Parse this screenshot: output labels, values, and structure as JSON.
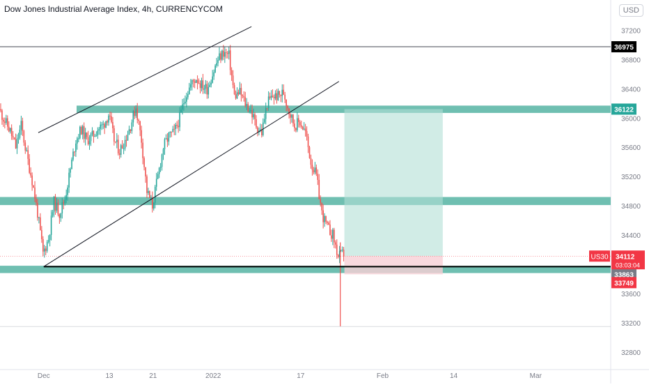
{
  "header": {
    "title": "Dow Jones Industrial Average Index, 4h, CURRENCYCOM",
    "currency": "USD"
  },
  "colors": {
    "up": "#26a69a",
    "down": "#ef5350",
    "zone": "#5fb8a8",
    "target_zone": "#b2dfd6",
    "stop_zone": "#f8d0d6",
    "price_tag": "#f23645",
    "level_dark": "#000000",
    "level_green": "#26a69a",
    "grey_tag": "#787b86"
  },
  "chart_data": {
    "type": "candlestick",
    "symbol": "US30",
    "ylim": [
      32560,
      37500
    ],
    "y_ticks": [
      32800,
      33200,
      33600,
      34000,
      34400,
      34800,
      35200,
      35600,
      36000,
      36400,
      36800,
      37200
    ],
    "x_tick_labels": [
      {
        "label": "Dec",
        "date": "2021-12-01"
      },
      {
        "label": "13",
        "date": "2021-12-13"
      },
      {
        "label": "21",
        "date": "2021-12-21"
      },
      {
        "label": "2022",
        "date": "2022-01-01"
      },
      {
        "label": "17",
        "date": "2022-01-17"
      },
      {
        "label": "Feb",
        "date": "2022-02-01"
      },
      {
        "label": "14",
        "date": "2022-02-14"
      },
      {
        "label": "Mar",
        "date": "2022-03-01"
      }
    ],
    "price_path": [
      [
        "2021-11-23",
        36120
      ],
      [
        "2021-11-24",
        35960
      ],
      [
        "2021-11-25",
        35820
      ],
      [
        "2021-11-26",
        35600
      ],
      [
        "2021-11-27",
        35900
      ],
      [
        "2021-11-28",
        35500
      ],
      [
        "2021-11-29",
        35150
      ],
      [
        "2021-11-30",
        34700
      ],
      [
        "2021-12-01",
        34150
      ],
      [
        "2021-12-02",
        34350
      ],
      [
        "2021-12-03",
        34850
      ],
      [
        "2021-12-04",
        34700
      ],
      [
        "2021-12-05",
        34900
      ],
      [
        "2021-12-06",
        35300
      ],
      [
        "2021-12-07",
        35700
      ],
      [
        "2021-12-08",
        35850
      ],
      [
        "2021-12-09",
        35700
      ],
      [
        "2021-12-10",
        35750
      ],
      [
        "2021-12-11",
        35850
      ],
      [
        "2021-12-12",
        35900
      ],
      [
        "2021-12-13",
        36050
      ],
      [
        "2021-12-14",
        35700
      ],
      [
        "2021-12-15",
        35550
      ],
      [
        "2021-12-16",
        35700
      ],
      [
        "2021-12-17",
        35900
      ],
      [
        "2021-12-18",
        36150
      ],
      [
        "2021-12-19",
        35700
      ],
      [
        "2021-12-20",
        35000
      ],
      [
        "2021-12-21",
        34800
      ],
      [
        "2021-12-22",
        35200
      ],
      [
        "2021-12-23",
        35600
      ],
      [
        "2021-12-24",
        35750
      ],
      [
        "2021-12-25",
        35800
      ],
      [
        "2021-12-26",
        36000
      ],
      [
        "2021-12-27",
        36300
      ],
      [
        "2021-12-28",
        36450
      ],
      [
        "2021-12-29",
        36550
      ],
      [
        "2021-12-30",
        36450
      ],
      [
        "2021-12-31",
        36400
      ],
      [
        "2022-01-01",
        36600
      ],
      [
        "2022-01-02",
        36800
      ],
      [
        "2022-01-03",
        36900
      ],
      [
        "2022-01-04",
        36850
      ],
      [
        "2022-01-05",
        36300
      ],
      [
        "2022-01-06",
        36350
      ],
      [
        "2022-01-07",
        36200
      ],
      [
        "2022-01-08",
        36100
      ],
      [
        "2022-01-09",
        35900
      ],
      [
        "2022-01-10",
        35800
      ],
      [
        "2022-01-11",
        36200
      ],
      [
        "2022-01-12",
        36300
      ],
      [
        "2022-01-13",
        36300
      ],
      [
        "2022-01-14",
        36350
      ],
      [
        "2022-01-15",
        36100
      ],
      [
        "2022-01-16",
        35900
      ],
      [
        "2022-01-17",
        35950
      ],
      [
        "2022-01-18",
        35800
      ],
      [
        "2022-01-19",
        35400
      ],
      [
        "2022-01-20",
        35200
      ],
      [
        "2022-01-21",
        34700
      ],
      [
        "2022-01-22",
        34500
      ],
      [
        "2022-01-23",
        34400
      ],
      [
        "2022-01-24",
        34100
      ],
      [
        "2022-01-25",
        34150
      ]
    ],
    "levels": [
      {
        "label": "36975",
        "value": 36975,
        "style": "dark"
      },
      {
        "label": "36122",
        "value": 36122,
        "style": "green"
      },
      {
        "label": "33968",
        "value": 33968,
        "style": "dark"
      },
      {
        "label": "33863",
        "value": 33863,
        "style": "grey"
      },
      {
        "label": "33749",
        "value": 33749,
        "style": "red"
      }
    ],
    "current_price": {
      "symbol": "US30",
      "value": 34112,
      "label": "34112",
      "countdown": "03:03:04"
    },
    "support_resistance_zones": [
      {
        "from": 36070,
        "to": 36170
      },
      {
        "from": 34810,
        "to": 34920
      },
      {
        "from": 33880,
        "to": 33980
      }
    ],
    "horizontal_line": {
      "value": 33968,
      "start": "2021-12-01"
    },
    "trendlines": [
      {
        "from": [
          "2021-11-30",
          35800
        ],
        "to": [
          "2022-01-08",
          37250
        ]
      },
      {
        "from": [
          "2021-12-01",
          33968
        ],
        "to": [
          "2022-01-24",
          36500
        ]
      }
    ],
    "position": {
      "start": "2022-01-25",
      "end": "2022-02-12",
      "entry": 34112,
      "target": 36122,
      "stop": 33863
    }
  }
}
